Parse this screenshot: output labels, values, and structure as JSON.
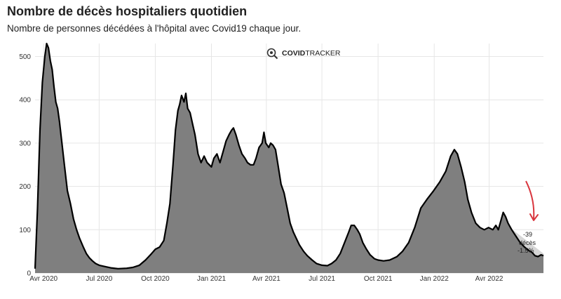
{
  "header": {
    "title": "Nombre de décès hospitaliers quotidien",
    "subtitle": "Nombre de personnes décédées à l'hôpital avec Covid19 chaque jour."
  },
  "watermark": {
    "brand_bold": "COVID",
    "brand_light": "TRACKER",
    "icon": "magnifier-virus-icon"
  },
  "annotation": {
    "lines": [
      "-39",
      "décès",
      "-1.5%"
    ],
    "arrow_color": "#d9363e"
  },
  "colors": {
    "area_fill": "#7f7f7f",
    "line": "#000000",
    "grid": "#e6e6e6",
    "highlight": "#cfcfcf"
  },
  "chart_data": {
    "type": "area",
    "title": "Nombre de décès hospitaliers quotidien",
    "xlabel": "",
    "ylabel": "",
    "ylim": [
      0,
      530
    ],
    "yticks": [
      0,
      100,
      200,
      300,
      400,
      500
    ],
    "grid": true,
    "xticks": [
      {
        "date": "2020-04-01",
        "label": "Avr 2020"
      },
      {
        "date": "2020-07-01",
        "label": "Jul 2020"
      },
      {
        "date": "2020-10-01",
        "label": "Oct 2020"
      },
      {
        "date": "2021-01-01",
        "label": "Jan 2021"
      },
      {
        "date": "2021-04-01",
        "label": "Avr 2021"
      },
      {
        "date": "2021-07-01",
        "label": "Jul 2021"
      },
      {
        "date": "2021-10-01",
        "label": "Oct 2021"
      },
      {
        "date": "2022-01-01",
        "label": "Jan 2022"
      },
      {
        "date": "2022-04-01",
        "label": "Avr 2022"
      }
    ],
    "series": [
      {
        "values": [
          [
            "2020-03-18",
            10
          ],
          [
            "2020-03-22",
            150
          ],
          [
            "2020-03-26",
            330
          ],
          [
            "2020-03-30",
            440
          ],
          [
            "2020-04-03",
            500
          ],
          [
            "2020-04-06",
            530
          ],
          [
            "2020-04-09",
            520
          ],
          [
            "2020-04-12",
            490
          ],
          [
            "2020-04-15",
            470
          ],
          [
            "2020-04-18",
            430
          ],
          [
            "2020-04-21",
            395
          ],
          [
            "2020-04-24",
            380
          ],
          [
            "2020-04-27",
            350
          ],
          [
            "2020-05-01",
            300
          ],
          [
            "2020-05-05",
            250
          ],
          [
            "2020-05-10",
            190
          ],
          [
            "2020-05-15",
            160
          ],
          [
            "2020-05-20",
            125
          ],
          [
            "2020-05-25",
            100
          ],
          [
            "2020-05-30",
            80
          ],
          [
            "2020-06-05",
            60
          ],
          [
            "2020-06-10",
            45
          ],
          [
            "2020-06-15",
            35
          ],
          [
            "2020-06-20",
            28
          ],
          [
            "2020-06-25",
            22
          ],
          [
            "2020-07-01",
            18
          ],
          [
            "2020-07-10",
            15
          ],
          [
            "2020-07-20",
            12
          ],
          [
            "2020-08-01",
            10
          ],
          [
            "2020-08-15",
            11
          ],
          [
            "2020-08-25",
            13
          ],
          [
            "2020-09-05",
            18
          ],
          [
            "2020-09-15",
            30
          ],
          [
            "2020-09-25",
            45
          ],
          [
            "2020-10-01",
            55
          ],
          [
            "2020-10-08",
            60
          ],
          [
            "2020-10-15",
            75
          ],
          [
            "2020-10-20",
            115
          ],
          [
            "2020-10-25",
            160
          ],
          [
            "2020-10-30",
            250
          ],
          [
            "2020-11-03",
            330
          ],
          [
            "2020-11-07",
            375
          ],
          [
            "2020-11-10",
            390
          ],
          [
            "2020-11-13",
            410
          ],
          [
            "2020-11-17",
            395
          ],
          [
            "2020-11-20",
            415
          ],
          [
            "2020-11-23",
            380
          ],
          [
            "2020-11-27",
            370
          ],
          [
            "2020-12-01",
            345
          ],
          [
            "2020-12-05",
            320
          ],
          [
            "2020-12-10",
            275
          ],
          [
            "2020-12-15",
            255
          ],
          [
            "2020-12-20",
            270
          ],
          [
            "2020-12-25",
            255
          ],
          [
            "2021-01-01",
            245
          ],
          [
            "2021-01-05",
            265
          ],
          [
            "2021-01-10",
            275
          ],
          [
            "2021-01-15",
            255
          ],
          [
            "2021-01-20",
            280
          ],
          [
            "2021-01-25",
            305
          ],
          [
            "2021-01-30",
            320
          ],
          [
            "2021-02-03",
            330
          ],
          [
            "2021-02-06",
            335
          ],
          [
            "2021-02-10",
            320
          ],
          [
            "2021-02-15",
            295
          ],
          [
            "2021-02-20",
            275
          ],
          [
            "2021-02-25",
            265
          ],
          [
            "2021-03-01",
            255
          ],
          [
            "2021-03-06",
            250
          ],
          [
            "2021-03-11",
            250
          ],
          [
            "2021-03-15",
            265
          ],
          [
            "2021-03-20",
            290
          ],
          [
            "2021-03-25",
            300
          ],
          [
            "2021-03-28",
            325
          ],
          [
            "2021-03-31",
            300
          ],
          [
            "2021-04-05",
            290
          ],
          [
            "2021-04-08",
            300
          ],
          [
            "2021-04-12",
            295
          ],
          [
            "2021-04-16",
            285
          ],
          [
            "2021-04-20",
            250
          ],
          [
            "2021-04-25",
            205
          ],
          [
            "2021-04-30",
            185
          ],
          [
            "2021-05-05",
            150
          ],
          [
            "2021-05-10",
            115
          ],
          [
            "2021-05-15",
            95
          ],
          [
            "2021-05-20",
            80
          ],
          [
            "2021-05-25",
            65
          ],
          [
            "2021-06-01",
            50
          ],
          [
            "2021-06-07",
            40
          ],
          [
            "2021-06-15",
            30
          ],
          [
            "2021-06-22",
            22
          ],
          [
            "2021-07-01",
            18
          ],
          [
            "2021-07-10",
            17
          ],
          [
            "2021-07-17",
            22
          ],
          [
            "2021-07-24",
            30
          ],
          [
            "2021-07-31",
            45
          ],
          [
            "2021-08-07",
            70
          ],
          [
            "2021-08-14",
            95
          ],
          [
            "2021-08-18",
            110
          ],
          [
            "2021-08-23",
            110
          ],
          [
            "2021-08-28",
            100
          ],
          [
            "2021-09-01",
            90
          ],
          [
            "2021-09-06",
            70
          ],
          [
            "2021-09-12",
            55
          ],
          [
            "2021-09-18",
            42
          ],
          [
            "2021-09-25",
            33
          ],
          [
            "2021-10-01",
            30
          ],
          [
            "2021-10-10",
            28
          ],
          [
            "2021-10-20",
            30
          ],
          [
            "2021-11-01",
            38
          ],
          [
            "2021-11-10",
            50
          ],
          [
            "2021-11-20",
            70
          ],
          [
            "2021-11-30",
            105
          ],
          [
            "2021-12-10",
            150
          ],
          [
            "2021-12-20",
            170
          ],
          [
            "2021-12-31",
            190
          ],
          [
            "2022-01-10",
            210
          ],
          [
            "2022-01-20",
            235
          ],
          [
            "2022-01-28",
            270
          ],
          [
            "2022-02-03",
            285
          ],
          [
            "2022-02-08",
            275
          ],
          [
            "2022-02-14",
            245
          ],
          [
            "2022-02-20",
            210
          ],
          [
            "2022-02-25",
            170
          ],
          [
            "2022-03-03",
            140
          ],
          [
            "2022-03-10",
            115
          ],
          [
            "2022-03-17",
            105
          ],
          [
            "2022-03-24",
            100
          ],
          [
            "2022-03-31",
            105
          ],
          [
            "2022-04-07",
            100
          ],
          [
            "2022-04-12",
            110
          ],
          [
            "2022-04-16",
            100
          ],
          [
            "2022-04-20",
            120
          ],
          [
            "2022-04-24",
            140
          ],
          [
            "2022-04-28",
            130
          ],
          [
            "2022-05-02",
            115
          ],
          [
            "2022-05-08",
            100
          ],
          [
            "2022-05-15",
            85
          ],
          [
            "2022-05-22",
            70
          ],
          [
            "2022-05-29",
            60
          ],
          [
            "2022-06-05",
            52
          ],
          [
            "2022-06-10",
            48
          ],
          [
            "2022-06-15",
            40
          ],
          [
            "2022-06-20",
            38
          ],
          [
            "2022-06-25",
            42
          ],
          [
            "2022-06-29",
            40
          ]
        ]
      }
    ]
  }
}
